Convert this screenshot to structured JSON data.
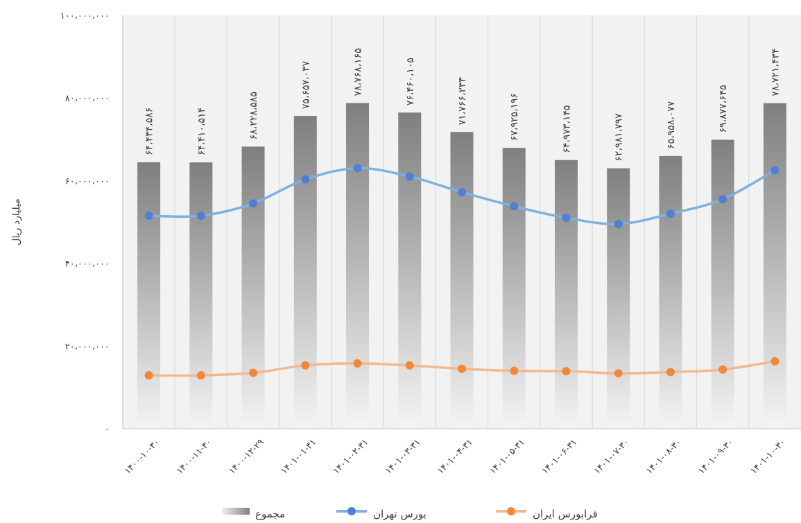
{
  "chart_data": {
    "type": "bar",
    "title": "",
    "xlabel": "",
    "ylabel": "میلیارد ریال",
    "ylim": [
      0,
      100000000
    ],
    "yticks": [
      0,
      20000000,
      40000000,
      60000000,
      80000000,
      100000000
    ],
    "ytick_labels": [
      "۰",
      "۲۰،۰۰۰،۰۰۰",
      "۴۰،۰۰۰،۰۰۰",
      "۶۰،۰۰۰،۰۰۰",
      "۸۰،۰۰۰،۰۰۰",
      "۱۰۰،۰۰۰،۰۰۰"
    ],
    "grid": "vertical",
    "legend_position": "bottom",
    "categories": [
      "۱۴۰۰-۱۰-۳۰",
      "۱۴۰۰-۱۱-۳۰",
      "۱۴۰۰-۱۲-۲۹",
      "۱۴۰۱-۰۱-۳۱",
      "۱۴۰۱-۰۲-۳۱",
      "۱۴۰۱-۰۳-۳۱",
      "۱۴۰۱-۰۴-۳۱",
      "۱۴۰۱-۰۵-۳۱",
      "۱۴۰۱-۰۶-۳۱",
      "۱۴۰۱-۰۷-۳۰",
      "۱۴۰۱-۰۸-۳۰",
      "۱۴۰۱-۰۹-۳۰",
      "۱۴۰۱-۱۰-۳۰"
    ],
    "series": [
      {
        "name": "مجموع",
        "kind": "bar",
        "color": "#808080",
        "values": [
          64434586,
          64410514,
          68228585,
          75657037,
          78768165,
          76460105,
          71766233,
          67925196,
          64973145,
          62981797,
          65958077,
          69877645,
          78721434
        ],
        "labels": [
          "۶۴،۴۳۴،۵۸۶",
          "۶۴،۴۱۰،۵۱۴",
          "۶۸،۲۲۸،۵۸۵",
          "۷۵،۶۵۷،۰۳۷",
          "۷۸،۷۶۸،۱۶۵",
          "۷۶،۴۶۰،۱۰۵",
          "۷۱،۷۶۶،۲۳۳",
          "۶۷،۹۲۵،۱۹۶",
          "۶۴،۹۷۳،۱۴۵",
          "۶۲،۹۸۱،۷۹۷",
          "۶۵،۹۵۸،۰۷۷",
          "۶۹،۸۷۷،۶۴۵",
          "۷۸،۷۲۱،۴۳۴"
        ]
      },
      {
        "name": "بورس تهران",
        "kind": "line",
        "color": "#4f7fd0",
        "line_color": "#7fb0de",
        "values": [
          51500000,
          51500000,
          54500000,
          60300000,
          63000000,
          61000000,
          57200000,
          53800000,
          51000000,
          49500000,
          52000000,
          55500000,
          62500000
        ]
      },
      {
        "name": "فرابورس ایران",
        "kind": "line",
        "color": "#f0883a",
        "line_color": "#f3b88e",
        "values": [
          12900000,
          12900000,
          13500000,
          15300000,
          15800000,
          15300000,
          14500000,
          14000000,
          13900000,
          13400000,
          13700000,
          14300000,
          16300000
        ]
      }
    ]
  }
}
